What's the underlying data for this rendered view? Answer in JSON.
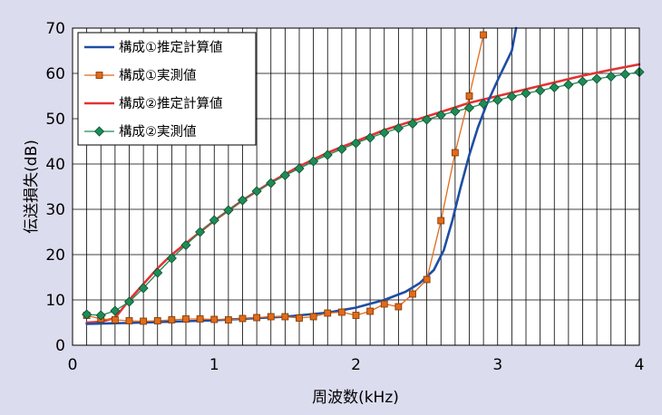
{
  "chart_data": {
    "type": "line",
    "title": "",
    "xlabel": "周波数(kHz)",
    "ylabel": "伝送損失(dB)",
    "xlim": [
      0,
      4
    ],
    "ylim": [
      0,
      70
    ],
    "x_ticks": [
      0,
      1,
      2,
      3,
      4
    ],
    "y_ticks": [
      0,
      10,
      20,
      30,
      40,
      50,
      60,
      70
    ],
    "grid": true,
    "legend_position": "top-left",
    "series": [
      {
        "name": "構成①推定計算値",
        "color": "#1f4ea3",
        "marker": "none",
        "x": [
          0.1,
          0.5,
          1.0,
          1.5,
          1.8,
          2.0,
          2.2,
          2.35,
          2.45,
          2.55,
          2.62,
          2.68,
          2.74,
          2.8,
          2.86,
          2.92,
          3.0,
          3.1,
          3.13
        ],
        "y": [
          4.7,
          5.0,
          5.5,
          6.3,
          7.2,
          8.3,
          10.0,
          11.8,
          13.7,
          16.6,
          21.0,
          27.5,
          35.0,
          42.0,
          48.0,
          53.0,
          58.5,
          65.0,
          70.0
        ]
      },
      {
        "name": "構成①実測値",
        "color": "#e06b1a",
        "marker": "square",
        "x": [
          0.1,
          0.2,
          0.3,
          0.4,
          0.5,
          0.6,
          0.7,
          0.8,
          0.9,
          1.0,
          1.1,
          1.2,
          1.3,
          1.4,
          1.5,
          1.6,
          1.7,
          1.8,
          1.9,
          2.0,
          2.1,
          2.2,
          2.3,
          2.4,
          2.5,
          2.6,
          2.7,
          2.8,
          2.9
        ],
        "y": [
          6.6,
          5.8,
          5.6,
          5.4,
          5.3,
          5.4,
          5.6,
          5.8,
          5.8,
          5.7,
          5.6,
          5.9,
          6.1,
          6.3,
          6.3,
          6.0,
          6.3,
          7.1,
          7.3,
          6.6,
          7.5,
          9.1,
          8.5,
          11.3,
          14.5,
          27.5,
          42.5,
          55.0,
          68.5
        ]
      },
      {
        "name": "構成②推定計算値",
        "color": "#e23333",
        "marker": "none",
        "x": [
          0.1,
          0.2,
          0.3,
          0.4,
          0.5,
          0.6,
          0.7,
          0.8,
          0.9,
          1.0,
          1.2,
          1.4,
          1.6,
          1.8,
          2.0,
          2.2,
          2.4,
          2.6,
          2.8,
          3.0,
          3.2,
          3.4,
          3.6,
          3.8,
          4.0
        ],
        "y": [
          5.0,
          5.2,
          6.0,
          10.0,
          13.5,
          17.0,
          20.0,
          22.5,
          25.0,
          27.5,
          32.0,
          36.0,
          39.5,
          42.5,
          45.0,
          47.5,
          49.5,
          51.5,
          53.5,
          55.0,
          56.5,
          58.0,
          59.5,
          60.8,
          62.0
        ]
      },
      {
        "name": "構成②実測値",
        "color": "#1e8c57",
        "marker": "diamond",
        "x": [
          0.1,
          0.2,
          0.3,
          0.4,
          0.5,
          0.6,
          0.7,
          0.8,
          0.9,
          1.0,
          1.1,
          1.2,
          1.3,
          1.4,
          1.5,
          1.6,
          1.7,
          1.8,
          1.9,
          2.0,
          2.1,
          2.2,
          2.3,
          2.4,
          2.5,
          2.6,
          2.7,
          2.8,
          2.9,
          3.0,
          3.1,
          3.2,
          3.3,
          3.4,
          3.5,
          3.6,
          3.7,
          3.8,
          3.9,
          4.0
        ],
        "y": [
          6.8,
          6.6,
          7.6,
          9.6,
          12.6,
          16.0,
          19.2,
          22.1,
          25.0,
          27.6,
          29.8,
          32.0,
          34.0,
          35.8,
          37.5,
          39.0,
          40.6,
          42.0,
          43.3,
          44.6,
          45.8,
          46.9,
          47.9,
          48.9,
          49.8,
          50.8,
          51.6,
          52.4,
          53.3,
          54.1,
          54.9,
          55.6,
          56.2,
          56.9,
          57.5,
          58.2,
          58.8,
          59.3,
          59.8,
          60.3
        ]
      }
    ]
  }
}
